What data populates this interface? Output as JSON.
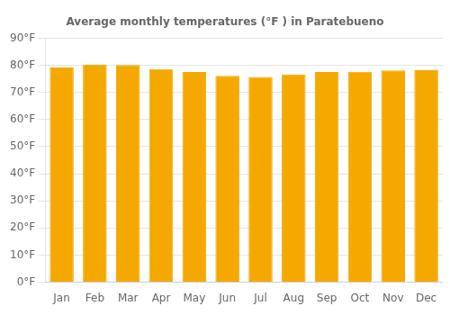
{
  "chart_data": {
    "type": "bar",
    "title": "Average monthly temperatures (°F ) in Paratebueno",
    "categories": [
      "Jan",
      "Feb",
      "Mar",
      "Apr",
      "May",
      "Jun",
      "Jul",
      "Aug",
      "Sep",
      "Oct",
      "Nov",
      "Dec"
    ],
    "values": [
      79.2,
      80.3,
      80.1,
      78.6,
      77.5,
      76.1,
      75.7,
      76.6,
      77.5,
      77.6,
      78.1,
      78.2
    ],
    "color": "#F5A800",
    "ylim": [
      0,
      90
    ],
    "yticks": [
      {
        "value": 0,
        "label": "0°F"
      },
      {
        "value": 10,
        "label": "10°F"
      },
      {
        "value": 20,
        "label": "20°F"
      },
      {
        "value": 30,
        "label": "30°F"
      },
      {
        "value": 40,
        "label": "40°F"
      },
      {
        "value": 50,
        "label": "50°F"
      },
      {
        "value": 60,
        "label": "60°F"
      },
      {
        "value": 70,
        "label": "70°F"
      },
      {
        "value": 80,
        "label": "80°F"
      },
      {
        "value": 90,
        "label": "90°F"
      }
    ],
    "grid": true
  }
}
